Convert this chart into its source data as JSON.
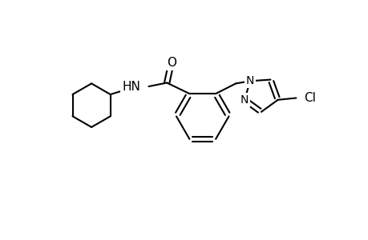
{
  "background_color": "#ffffff",
  "line_color": "#000000",
  "line_width": 1.5,
  "fig_width": 4.6,
  "fig_height": 3.0,
  "dpi": 100,
  "xlim": [
    0,
    10
  ],
  "ylim": [
    0,
    6
  ]
}
